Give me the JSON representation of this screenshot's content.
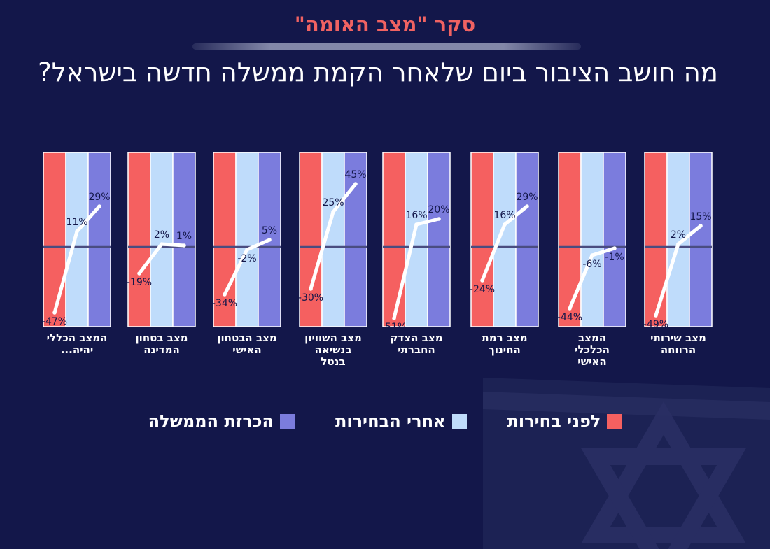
{
  "header": {
    "survey_title": "סקר \"מצב האומה\"",
    "question": "מה חושב הציבור ביום שלאחר הקמת ממשלה חדשה בישראל?"
  },
  "colors": {
    "background": "#13174a",
    "before_elections": "#f56060",
    "after_elections": "#bfdcfb",
    "government_announcement": "#7b7cdd",
    "trend_line": "#ffffff",
    "title_accent": "#f06262"
  },
  "legend": [
    {
      "label": "לפני בחירות",
      "color": "#f56060"
    },
    {
      "label": "אחרי הבחירות",
      "color": "#bfdcfb"
    },
    {
      "label": "הכרזת הממשלה",
      "color": "#7b7cdd"
    }
  ],
  "chart_data": {
    "type": "line",
    "zero_baseline": true,
    "ylim": [
      -55,
      50
    ],
    "series_names": [
      "לפני בחירות",
      "אחרי הבחירות",
      "הכרזת הממשלה"
    ],
    "panels": [
      {
        "category": "מצב שירותי הרווחה",
        "label_lines": [
          "מצב שירותי",
          "הרווחה"
        ],
        "values": [
          -49,
          2,
          15
        ],
        "labels": [
          "-49%",
          "2%",
          "15%"
        ]
      },
      {
        "category": "המצב הכלכלי האישי",
        "label_lines": [
          "המצב",
          "הכלכלי",
          "האישי"
        ],
        "values": [
          -44,
          -6,
          -1
        ],
        "labels": [
          "-44%",
          "-6%",
          "-1%"
        ]
      },
      {
        "category": "מצב רמת החינוך",
        "label_lines": [
          "מצב רמת",
          "החינוך"
        ],
        "values": [
          -24,
          16,
          29
        ],
        "labels": [
          "-24%",
          "16%",
          "29%"
        ]
      },
      {
        "category": "מצב הצדק החברתי",
        "label_lines": [
          "מצב הצדק",
          "החברתי"
        ],
        "values": [
          -51,
          16,
          20
        ],
        "labels": [
          "-51%",
          "16%",
          "20%"
        ]
      },
      {
        "category": "מצב השוויון בנשיאה בנטל",
        "label_lines": [
          "מצב השוויון",
          "בנשיאה",
          "בנטל"
        ],
        "values": [
          -30,
          25,
          45
        ],
        "labels": [
          "-30%",
          "25%",
          "45%"
        ]
      },
      {
        "category": "מצב הבטחון האישי",
        "label_lines": [
          "מצב הבטחון",
          "האישי"
        ],
        "values": [
          -34,
          -2,
          5
        ],
        "labels": [
          "-34%",
          "-2%",
          "5%"
        ]
      },
      {
        "category": "מצב בטחון המדינה",
        "label_lines": [
          "מצב בטחון",
          "המדינה"
        ],
        "values": [
          -19,
          2,
          1
        ],
        "labels": [
          "-19%",
          "2%",
          "1%"
        ]
      },
      {
        "category": "המצב הכללי יהיה...",
        "label_lines": [
          "המצב הכללי",
          "יהיה..."
        ],
        "values": [
          -47,
          11,
          29
        ],
        "labels": [
          "-47%",
          "11%",
          "29%"
        ]
      }
    ]
  }
}
